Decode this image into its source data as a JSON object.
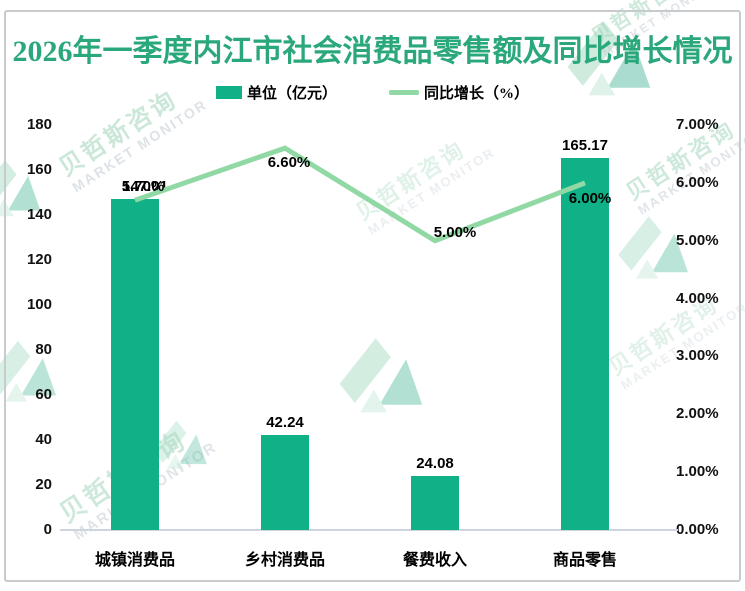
{
  "title": "2026年一季度内江市社会消费品零售额及同比增长情况",
  "legend": {
    "bar_label": "单位（亿元）",
    "line_label": "同比增长（%）"
  },
  "watermark": {
    "cn": "贝哲斯咨询",
    "en": "MARKET MONITOR"
  },
  "colors": {
    "bar": "#10B187",
    "line": "#90D8A4",
    "title": "#2BA87B",
    "axis_text": "#111111",
    "baseline": "#ccd5e0",
    "frame": "#c8cbcd",
    "wm_cn": "#9fd4ba",
    "wm_en": "#c2cbd3"
  },
  "chart_data": {
    "type": "bar+line combo",
    "categories": [
      "城镇消费品",
      "乡村消费品",
      "餐费收入",
      "商品零售"
    ],
    "series": [
      {
        "name": "单位（亿元）",
        "type": "bar",
        "axis": "left",
        "values": [
          147.01,
          42.24,
          24.08,
          165.17
        ],
        "labels": [
          "147.01",
          "42.24",
          "24.08",
          "165.17"
        ]
      },
      {
        "name": "同比增长（%）",
        "type": "line",
        "axis": "right",
        "values": [
          5.7,
          6.6,
          5.0,
          6.0
        ],
        "labels": [
          "5.70%",
          "6.60%",
          "5.00%",
          "6.00%"
        ]
      }
    ],
    "left_axis": {
      "min": 0,
      "max": 180,
      "step": 20,
      "ticks": [
        "0",
        "20",
        "40",
        "60",
        "80",
        "100",
        "120",
        "140",
        "160",
        "180"
      ]
    },
    "right_axis": {
      "min": 0,
      "max": 7,
      "step": 1,
      "ticks": [
        "0.00%",
        "1.00%",
        "2.00%",
        "3.00%",
        "4.00%",
        "5.00%",
        "6.00%",
        "7.00%"
      ]
    },
    "grid": false,
    "legend_position": "top"
  }
}
